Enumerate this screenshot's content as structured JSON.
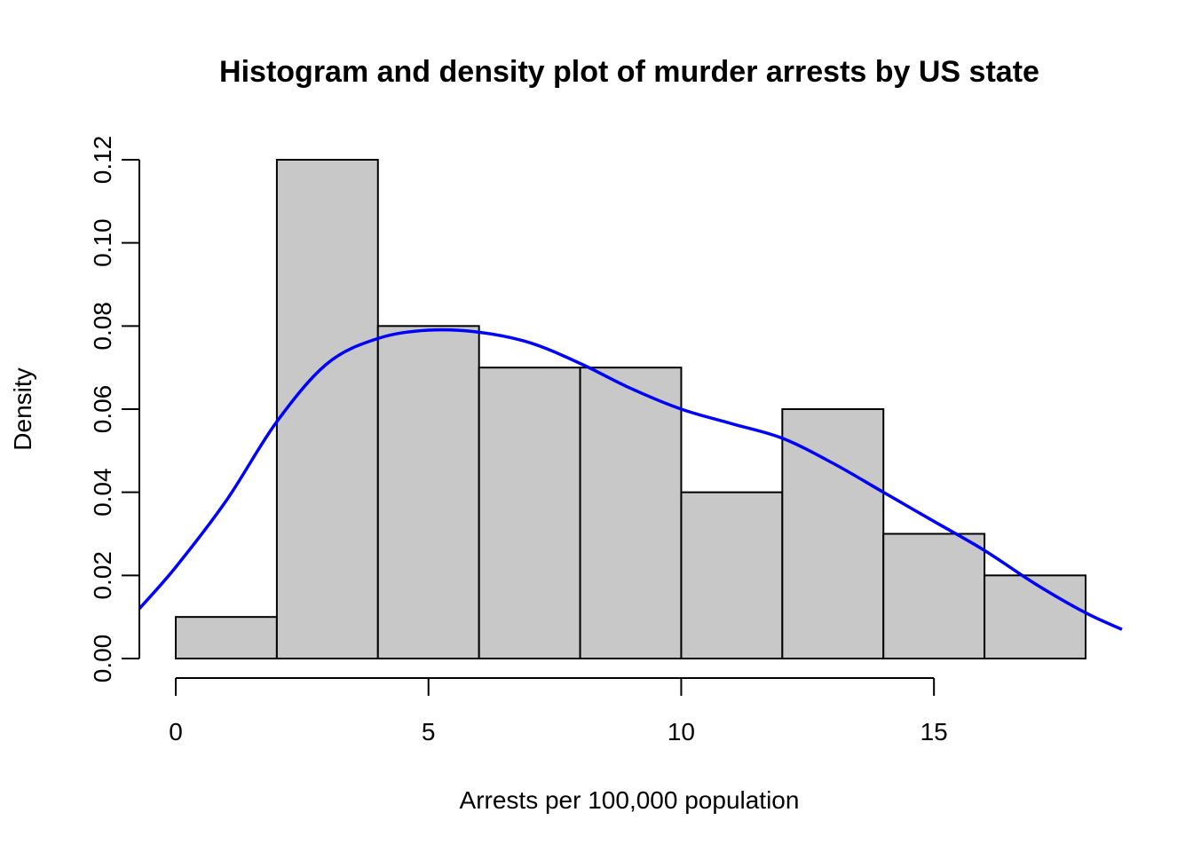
{
  "chart_data": {
    "type": "bar",
    "title": "Histogram and density plot of murder arrests by US state",
    "xlabel": "Arrests per 100,000 population",
    "ylabel": "Density",
    "xlim": [
      -0.72,
      18.72
    ],
    "ylim": [
      0,
      0.12
    ],
    "x_ticks": [
      0,
      5,
      10,
      15
    ],
    "y_ticks": [
      0.0,
      0.02,
      0.04,
      0.06,
      0.08,
      0.1,
      0.12
    ],
    "x_tick_labels": [
      "0",
      "5",
      "10",
      "15"
    ],
    "y_tick_labels": [
      "0.00",
      "0.02",
      "0.04",
      "0.06",
      "0.08",
      "0.10",
      "0.12"
    ],
    "bins": [
      {
        "from": 0,
        "to": 2,
        "density": 0.01
      },
      {
        "from": 2,
        "to": 4,
        "density": 0.12
      },
      {
        "from": 4,
        "to": 6,
        "density": 0.08
      },
      {
        "from": 6,
        "to": 8,
        "density": 0.07
      },
      {
        "from": 8,
        "to": 10,
        "density": 0.07
      },
      {
        "from": 10,
        "to": 12,
        "density": 0.04
      },
      {
        "from": 12,
        "to": 14,
        "density": 0.06
      },
      {
        "from": 14,
        "to": 16,
        "density": 0.03
      },
      {
        "from": 16,
        "to": 18,
        "density": 0.02
      }
    ],
    "density_color": "#0000ff",
    "bar_color": "#c8c8c8",
    "density": {
      "x": [
        -0.72,
        0,
        1,
        2,
        3,
        4,
        5,
        6,
        7,
        8,
        9,
        10,
        11,
        12,
        13,
        14,
        15,
        16,
        17,
        18,
        18.72
      ],
      "y": [
        0.012,
        0.022,
        0.038,
        0.057,
        0.071,
        0.077,
        0.079,
        0.0785,
        0.076,
        0.071,
        0.065,
        0.06,
        0.0565,
        0.053,
        0.047,
        0.04,
        0.033,
        0.026,
        0.018,
        0.011,
        0.007
      ]
    },
    "grid": false,
    "legend": "none"
  }
}
